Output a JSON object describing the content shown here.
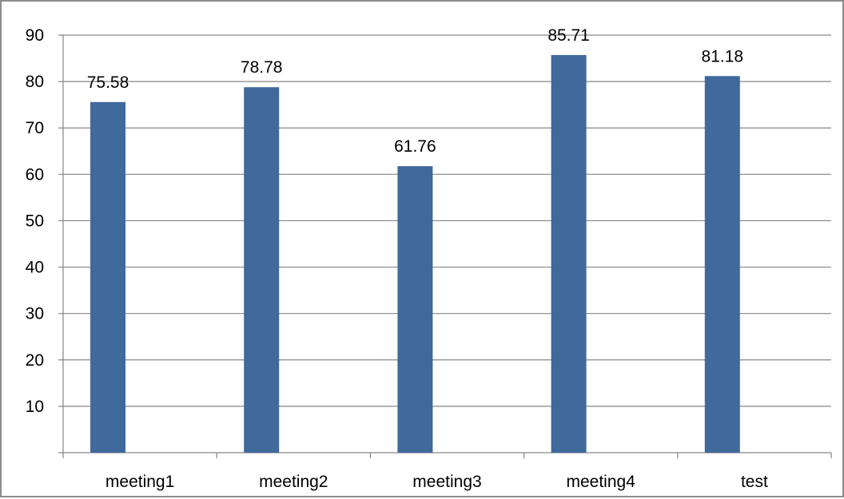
{
  "chart_data": {
    "type": "bar",
    "title": "",
    "xlabel": "",
    "ylabel": "",
    "categories": [
      "meeting1",
      "meeting2",
      "meeting3",
      "meeting4",
      "test"
    ],
    "values": [
      75.58,
      78.78,
      61.76,
      85.71,
      81.18
    ],
    "data_labels": [
      "75.58",
      "78.78",
      "61.76",
      "85.71",
      "81.18"
    ],
    "ylim": [
      0,
      90
    ],
    "y_ticks": [
      10,
      20,
      30,
      40,
      50,
      60,
      70,
      80,
      90
    ],
    "grid": true,
    "legend": "none",
    "colors": {
      "bar": "#40699c",
      "grid": "#868686",
      "axis": "#868686",
      "border": "#8c8c8c",
      "text": "#000000"
    }
  }
}
